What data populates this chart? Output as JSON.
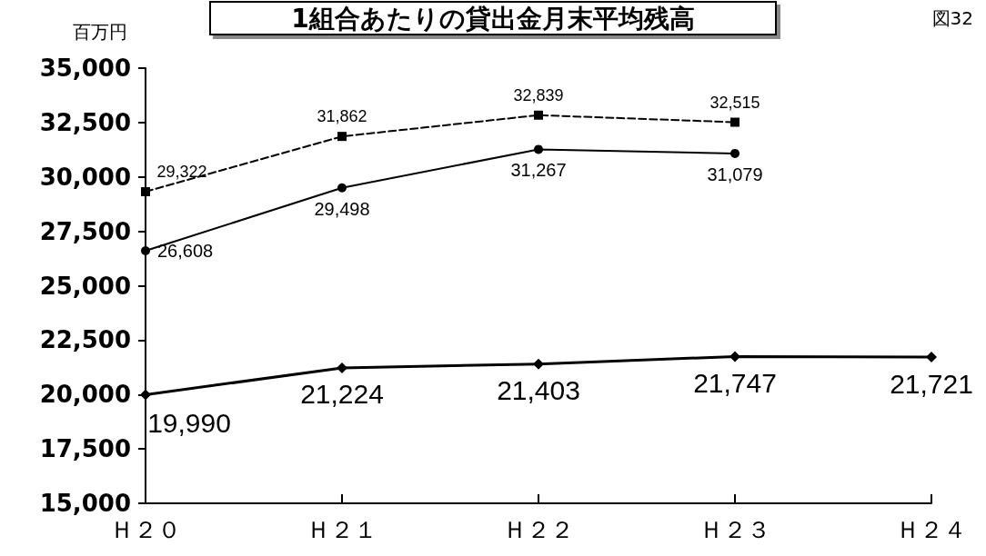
{
  "chart_data": {
    "type": "line",
    "title": "1組合あたりの貸出金月末平均残高",
    "ylabel": "百万円",
    "annotations": [
      "図32"
    ],
    "categories": [
      "Ｈ２０",
      "Ｈ２１",
      "Ｈ２２",
      "Ｈ２３",
      "Ｈ２４"
    ],
    "series": [
      {
        "color": "#000000",
        "values": [
          29322,
          31862,
          32839,
          32515,
          null
        ],
        "value_labels": [
          "29,322",
          "31,862",
          "32,839",
          "32,515",
          null
        ],
        "line_style": "dashed",
        "marker": "square"
      },
      {
        "color": "#000000",
        "values": [
          26608,
          29498,
          31267,
          31079,
          null
        ],
        "value_labels": [
          "26,608",
          "29,498",
          "31,267",
          "31,079",
          null
        ],
        "line_style": "solid",
        "marker": "circle"
      },
      {
        "color": "#000000",
        "values": [
          19990,
          21224,
          21403,
          21747,
          21721
        ],
        "value_labels": [
          "19,990",
          "21,224",
          "21,403",
          "21,747",
          "21,721"
        ],
        "line_style": "solid",
        "marker": "diamond"
      }
    ],
    "ylim": [
      15000,
      35000
    ],
    "yticks": [
      {
        "value": 15000,
        "label": "15,000"
      },
      {
        "value": 17500,
        "label": "17,500"
      },
      {
        "value": 20000,
        "label": "20,000"
      },
      {
        "value": 22500,
        "label": "22,500"
      },
      {
        "value": 25000,
        "label": "25,000"
      },
      {
        "value": 27500,
        "label": "27,500"
      },
      {
        "value": 30000,
        "label": "30,000"
      },
      {
        "value": 32500,
        "label": "32,500"
      },
      {
        "value": 35000,
        "label": "35,000"
      }
    ],
    "grid": false
  }
}
